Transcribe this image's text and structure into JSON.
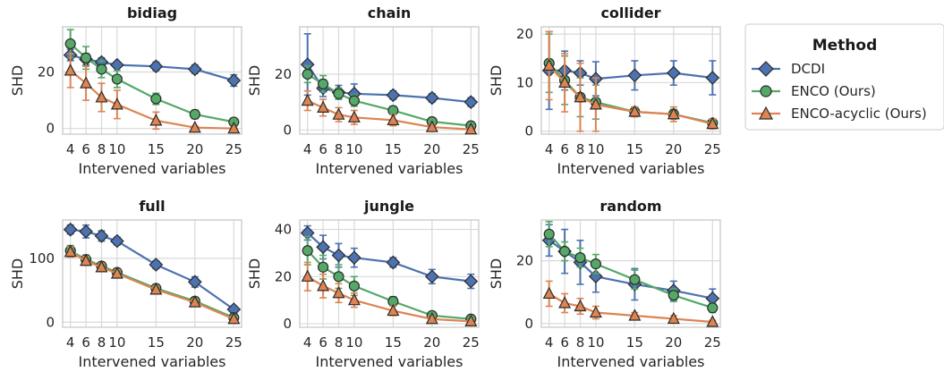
{
  "legend": {
    "title": "Method",
    "entries": [
      "DCDI",
      "ENCO (Ours)",
      "ENCO-acyclic (Ours)"
    ]
  },
  "colors": {
    "DCDI": "#4c72b0",
    "ENCO (Ours)": "#55a868",
    "ENCO-acyclic (Ours)": "#dd8452",
    "grid": "#d9d9d9",
    "frame": "#cccccc"
  },
  "chart_data": [
    {
      "type": "line",
      "title": "bidiag",
      "xlabel": "Intervened variables",
      "ylabel": "SHD",
      "x": [
        4,
        6,
        8,
        10,
        15,
        20,
        25
      ],
      "ylim": [
        -2,
        36
      ],
      "yticks": [
        0,
        20
      ],
      "series": [
        {
          "name": "DCDI",
          "values": [
            26,
            24.5,
            23.5,
            22.5,
            22,
            21,
            17
          ],
          "err": [
            2,
            2,
            1.5,
            1,
            1.5,
            1.5,
            2
          ]
        },
        {
          "name": "ENCO (Ours)",
          "values": [
            30,
            25,
            21,
            17.5,
            10.5,
            5,
            2.3
          ],
          "err": [
            5,
            4,
            3,
            3,
            2,
            1.5,
            1
          ]
        },
        {
          "name": "ENCO-acyclic (Ours)",
          "values": [
            20.5,
            16,
            11,
            8.5,
            2.8,
            0.3,
            0
          ],
          "err": [
            6,
            6,
            5,
            5,
            3,
            0.5,
            0.2
          ]
        }
      ]
    },
    {
      "type": "line",
      "title": "chain",
      "xlabel": "Intervened variables",
      "ylabel": "SHD",
      "x": [
        4,
        6,
        8,
        10,
        15,
        20,
        25
      ],
      "ylim": [
        -1.5,
        37
      ],
      "yticks": [
        0,
        20
      ],
      "series": [
        {
          "name": "DCDI",
          "values": [
            23.5,
            15,
            13.5,
            13,
            12.5,
            11.5,
            10
          ],
          "err": [
            11,
            3,
            2.5,
            3.5,
            1.5,
            1.5,
            1.5
          ]
        },
        {
          "name": "ENCO (Ours)",
          "values": [
            20,
            16.5,
            13,
            10.5,
            7,
            3,
            1.5
          ],
          "err": [
            3,
            3,
            2,
            2,
            1.5,
            1,
            1
          ]
        },
        {
          "name": "ENCO-acyclic (Ours)",
          "values": [
            10.5,
            8,
            5.5,
            4.5,
            3.5,
            1,
            0.2
          ],
          "err": [
            3.5,
            3,
            2.5,
            2.5,
            2,
            1,
            0.2
          ]
        }
      ]
    },
    {
      "type": "line",
      "title": "collider",
      "xlabel": "Intervened variables",
      "ylabel": "SHD",
      "x": [
        4,
        6,
        8,
        10,
        15,
        20,
        25
      ],
      "ylim": [
        -0.6,
        21.5
      ],
      "yticks": [
        0,
        10,
        20
      ],
      "series": [
        {
          "name": "DCDI",
          "values": [
            12.5,
            12.5,
            12,
            10.8,
            11.5,
            12,
            11
          ],
          "err": [
            8,
            4,
            2.5,
            3.5,
            3,
            2.5,
            3.5
          ]
        },
        {
          "name": "ENCO (Ours)",
          "values": [
            14,
            10.5,
            7,
            6,
            4,
            3.5,
            1.7
          ],
          "err": [
            6,
            5,
            4,
            3.5,
            1,
            1,
            0.8
          ]
        },
        {
          "name": "ENCO-acyclic (Ours)",
          "values": [
            13.5,
            10,
            7,
            5.5,
            4,
            3.5,
            1.5
          ],
          "err": [
            7,
            6,
            7,
            5.5,
            1,
            1.5,
            1
          ]
        }
      ]
    },
    {
      "type": "line",
      "title": "full",
      "xlabel": "Intervened variables",
      "ylabel": "SHD",
      "x": [
        4,
        6,
        8,
        10,
        15,
        20,
        25
      ],
      "ylim": [
        -8,
        160
      ],
      "yticks": [
        0,
        100
      ],
      "series": [
        {
          "name": "DCDI",
          "values": [
            145,
            142,
            135,
            127,
            90,
            63,
            20
          ],
          "err": [
            7,
            10,
            8,
            6,
            6,
            8,
            5
          ]
        },
        {
          "name": "ENCO (Ours)",
          "values": [
            112,
            98,
            88,
            78,
            53,
            33,
            7
          ],
          "err": [
            8,
            7,
            6,
            6,
            6,
            4,
            3
          ]
        },
        {
          "name": "ENCO-acyclic (Ours)",
          "values": [
            110,
            96,
            86,
            76,
            51,
            31,
            5
          ],
          "err": [
            8,
            7,
            6,
            6,
            6,
            4,
            3
          ]
        }
      ]
    },
    {
      "type": "line",
      "title": "jungle",
      "xlabel": "Intervened variables",
      "ylabel": "SHD",
      "x": [
        4,
        6,
        8,
        10,
        15,
        20,
        25
      ],
      "ylim": [
        -1.5,
        44
      ],
      "yticks": [
        0,
        20,
        40
      ],
      "series": [
        {
          "name": "DCDI",
          "values": [
            38.5,
            32.5,
            29,
            28,
            26,
            20,
            18
          ],
          "err": [
            3,
            5,
            5,
            4,
            2,
            3,
            3
          ]
        },
        {
          "name": "ENCO (Ours)",
          "values": [
            31,
            24,
            20,
            16,
            9.5,
            3.5,
            2
          ],
          "err": [
            6,
            5,
            5,
            4,
            2,
            1,
            0.5
          ]
        },
        {
          "name": "ENCO-acyclic (Ours)",
          "values": [
            20,
            16,
            13,
            10,
            5.5,
            2,
            1
          ],
          "err": [
            6,
            5,
            4,
            3,
            2,
            1,
            0.5
          ]
        }
      ]
    },
    {
      "type": "line",
      "title": "random",
      "xlabel": "Intervened variables",
      "ylabel": "SHD",
      "x": [
        4,
        6,
        8,
        10,
        15,
        20,
        25
      ],
      "ylim": [
        -1.2,
        33
      ],
      "yticks": [
        0,
        20
      ],
      "series": [
        {
          "name": "DCDI",
          "values": [
            26.5,
            23,
            19.5,
            15,
            12.5,
            10.5,
            8
          ],
          "err": [
            5,
            7,
            7,
            5,
            5,
            3,
            3
          ]
        },
        {
          "name": "ENCO (Ours)",
          "values": [
            28.5,
            23,
            21,
            19,
            14,
            9,
            5
          ],
          "err": [
            4,
            3,
            3,
            3,
            3,
            2,
            1.5
          ]
        },
        {
          "name": "ENCO-acyclic (Ours)",
          "values": [
            9.5,
            6.5,
            5.5,
            3.5,
            2.5,
            1.5,
            0.5
          ],
          "err": [
            4,
            3,
            2.5,
            2,
            1,
            1,
            0.5
          ]
        }
      ]
    }
  ]
}
